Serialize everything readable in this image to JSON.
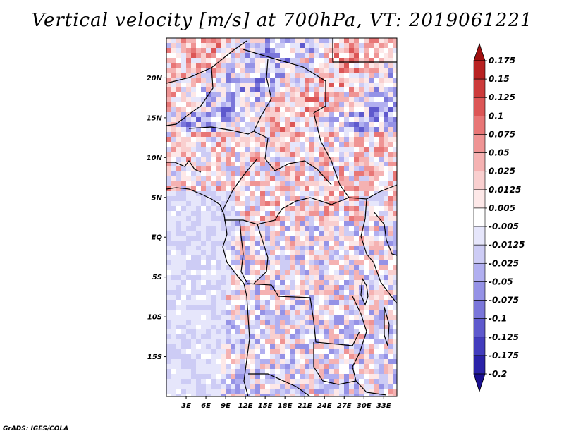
{
  "title": "Vertical velocity [m/s] at 700hPa, VT: 2019061221",
  "credit": "GrADS: IGES/COLA",
  "map": {
    "lon_range": [
      0,
      35
    ],
    "lat_range": [
      -20,
      25
    ],
    "lat_ticks": [
      {
        "value": 20,
        "label": "20N"
      },
      {
        "value": 15,
        "label": "15N"
      },
      {
        "value": 10,
        "label": "10N"
      },
      {
        "value": 5,
        "label": "5N"
      },
      {
        "value": 0,
        "label": "EQ"
      },
      {
        "value": -5,
        "label": "5S"
      },
      {
        "value": -10,
        "label": "10S"
      },
      {
        "value": -15,
        "label": "15S"
      }
    ],
    "lon_ticks": [
      {
        "value": 3,
        "label": "3E"
      },
      {
        "value": 6,
        "label": "6E"
      },
      {
        "value": 9,
        "label": "9E"
      },
      {
        "value": 12,
        "label": "12E"
      },
      {
        "value": 15,
        "label": "15E"
      },
      {
        "value": 18,
        "label": "18E"
      },
      {
        "value": 21,
        "label": "21E"
      },
      {
        "value": 24,
        "label": "24E"
      },
      {
        "value": 27,
        "label": "27E"
      },
      {
        "value": 30,
        "label": "30E"
      },
      {
        "value": 33,
        "label": "33E"
      }
    ]
  },
  "colorbar": {
    "labels": [
      "0.175",
      "0.15",
      "0.125",
      "0.1",
      "0.075",
      "0.05",
      "0.025",
      "0.0125",
      "0.005",
      "-0.005",
      "-0.0125",
      "-0.025",
      "-0.05",
      "-0.075",
      "-0.1",
      "-0.125",
      "-0.175",
      "-0.2"
    ],
    "colors": [
      "#a01010",
      "#b82222",
      "#cc3b3b",
      "#dc5656",
      "#e87676",
      "#ef9494",
      "#f5b2b2",
      "#f9cfcf",
      "#fde8e8",
      "#ffffff",
      "#e6e6fb",
      "#cdccf5",
      "#b1aff0",
      "#9592e6",
      "#7a76da",
      "#5e59cd",
      "#423cbd",
      "#2a22a8",
      "#1a0f90"
    ]
  }
}
